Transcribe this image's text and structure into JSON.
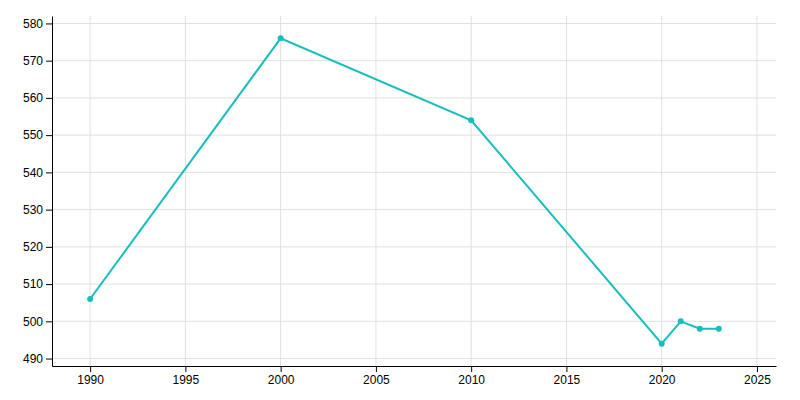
{
  "chart_data": {
    "type": "line",
    "x": [
      1990,
      2000,
      2010,
      2020,
      2021,
      2022,
      2023
    ],
    "values": [
      506,
      576,
      554,
      494,
      500,
      498,
      498
    ],
    "color": "#17BEBB",
    "marker": "circle",
    "xlim": [
      1988,
      2026
    ],
    "ylim": [
      488,
      582
    ],
    "xticks": [
      1990,
      1995,
      2000,
      2005,
      2010,
      2015,
      2020,
      2025
    ],
    "yticks": [
      490,
      500,
      510,
      520,
      530,
      540,
      550,
      560,
      570,
      580
    ],
    "grid": true
  }
}
